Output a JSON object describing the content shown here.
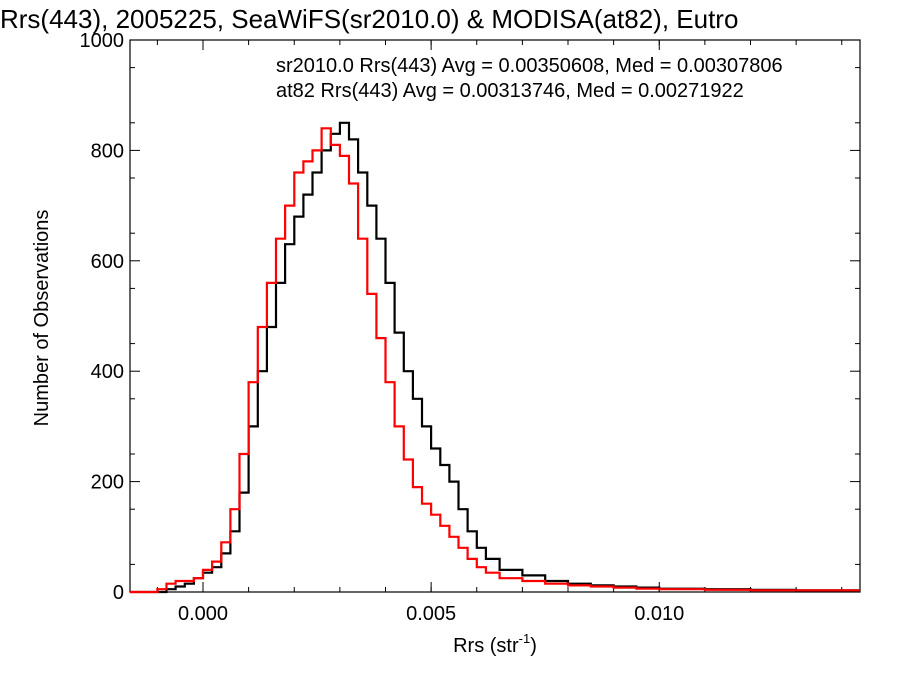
{
  "chart_data": {
    "type": "line",
    "title": "Rrs(443), 2005225, SeaWiFS(sr2010.0) & MODISA(at82), Eutro",
    "xlabel_main": "Rrs (str",
    "xlabel_sup": "-1",
    "xlabel_close": ")",
    "ylabel": "Number of Observations",
    "xlim": [
      -0.0016,
      0.0144
    ],
    "ylim": [
      0,
      1000
    ],
    "xticks": [
      0.0,
      0.005,
      0.01
    ],
    "xtick_labels": [
      "0.000",
      "0.005",
      "0.010"
    ],
    "yticks": [
      0,
      200,
      400,
      600,
      800,
      1000
    ],
    "ytick_labels": [
      "0",
      "200",
      "400",
      "600",
      "800",
      "1000"
    ],
    "step_style": "histogram",
    "series": [
      {
        "name": "sr2010.0",
        "color": "#000000",
        "legend_text": "sr2010.0 Rrs(443) Avg = 0.00350608, Med = 0.00307806",
        "x": [
          -0.0016,
          -0.001,
          -0.0008,
          -0.0006,
          -0.0004,
          -0.0002,
          0.0,
          0.0002,
          0.0004,
          0.0006,
          0.0008,
          0.001,
          0.0012,
          0.0014,
          0.0016,
          0.0018,
          0.002,
          0.0022,
          0.0024,
          0.0026,
          0.0028,
          0.003,
          0.0032,
          0.0034,
          0.0036,
          0.0038,
          0.004,
          0.0042,
          0.0044,
          0.0046,
          0.0048,
          0.005,
          0.0052,
          0.0054,
          0.0056,
          0.0058,
          0.006,
          0.0062,
          0.0065,
          0.007,
          0.0075,
          0.008,
          0.0085,
          0.009,
          0.0095,
          0.01,
          0.011,
          0.012,
          0.013,
          0.0144
        ],
        "y": [
          0,
          0,
          5,
          10,
          15,
          25,
          35,
          45,
          70,
          110,
          180,
          300,
          400,
          480,
          560,
          630,
          680,
          720,
          760,
          800,
          830,
          850,
          820,
          760,
          700,
          640,
          560,
          470,
          400,
          350,
          300,
          260,
          230,
          200,
          150,
          110,
          80,
          60,
          40,
          30,
          20,
          15,
          12,
          10,
          8,
          6,
          5,
          4,
          3,
          3
        ]
      },
      {
        "name": "at82",
        "color": "#ff0000",
        "legend_text": "at82 Rrs(443) Avg = 0.00313746, Med = 0.00271922",
        "x": [
          -0.0016,
          -0.001,
          -0.0008,
          -0.0006,
          -0.0004,
          -0.0002,
          0.0,
          0.0002,
          0.0004,
          0.0006,
          0.0008,
          0.001,
          0.0012,
          0.0014,
          0.0016,
          0.0018,
          0.002,
          0.0022,
          0.0024,
          0.0026,
          0.0028,
          0.003,
          0.0032,
          0.0034,
          0.0036,
          0.0038,
          0.004,
          0.0042,
          0.0044,
          0.0046,
          0.0048,
          0.005,
          0.0052,
          0.0054,
          0.0056,
          0.0058,
          0.006,
          0.0062,
          0.0065,
          0.007,
          0.0075,
          0.008,
          0.0085,
          0.009,
          0.0095,
          0.01,
          0.011,
          0.012,
          0.013,
          0.0144
        ],
        "y": [
          0,
          5,
          15,
          20,
          20,
          25,
          40,
          55,
          90,
          150,
          250,
          380,
          480,
          560,
          640,
          700,
          760,
          780,
          800,
          840,
          810,
          790,
          740,
          640,
          540,
          460,
          380,
          300,
          240,
          190,
          160,
          140,
          120,
          100,
          80,
          60,
          45,
          35,
          25,
          20,
          15,
          12,
          10,
          8,
          6,
          5,
          4,
          3,
          3,
          3
        ]
      }
    ]
  }
}
